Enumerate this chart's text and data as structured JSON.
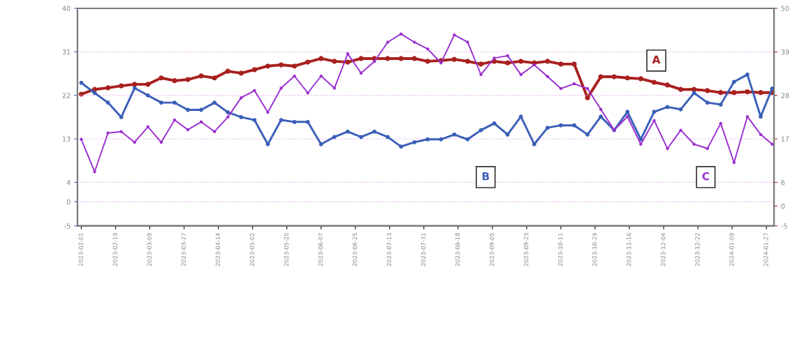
{
  "chart_data": {
    "type": "line",
    "x": [
      "2023-02-01",
      "2023-02-08",
      "2023-02-15",
      "2023-02-22",
      "2023-03-01",
      "2023-03-08",
      "2023-03-15",
      "2023-03-22",
      "2023-03-29",
      "2023-04-05",
      "2023-04-12",
      "2023-04-19",
      "2023-04-26",
      "2023-05-03",
      "2023-05-10",
      "2023-05-17",
      "2023-05-24",
      "2023-05-31",
      "2023-06-07",
      "2023-06-14",
      "2023-06-21",
      "2023-06-28",
      "2023-07-05",
      "2023-07-12",
      "2023-07-19",
      "2023-07-26",
      "2023-08-02",
      "2023-08-09",
      "2023-08-16",
      "2023-08-23",
      "2023-08-30",
      "2023-09-06",
      "2023-09-13",
      "2023-09-20",
      "2023-09-27",
      "2023-10-04",
      "2023-10-11",
      "2023-10-18",
      "2023-10-25",
      "2023-11-01",
      "2023-11-08",
      "2023-11-15",
      "2023-11-22",
      "2023-11-29",
      "2023-12-06",
      "2023-12-13",
      "2023-12-20",
      "2023-12-27",
      "2024-01-03",
      "2024-01-10",
      "2024-01-17",
      "2024-01-24",
      "2024-01-30"
    ],
    "series": [
      {
        "name": "A",
        "color": "#a8201e",
        "axis": "y2",
        "values": [
          28.3,
          29.5,
          29.9,
          30.4,
          30.8,
          30.8,
          32.4,
          31.7,
          32,
          32.9,
          32.4,
          34.1,
          33.6,
          34.5,
          35.4,
          35.7,
          35.4,
          36.4,
          37.3,
          36.6,
          36.4,
          37.3,
          37.3,
          37.3,
          37.3,
          37.3,
          36.6,
          36.8,
          37.1,
          36.6,
          35.9,
          36.6,
          36.2,
          36.6,
          36.2,
          36.6,
          35.9,
          35.9,
          27.4,
          32.7,
          32.7,
          32.4,
          32.2,
          31.3,
          30.6,
          29.5,
          29.5,
          29.2,
          28.7,
          28.7,
          28.9,
          28.7,
          28.7
        ]
      },
      {
        "name": "B",
        "color": "#3a5fb8",
        "values": [
          24.6,
          22.5,
          20.5,
          17.5,
          23.5,
          22,
          20.5,
          20.5,
          19,
          19,
          20.5,
          18.5,
          17.5,
          16.9,
          11.9,
          16.9,
          16.5,
          16.5,
          11.9,
          13.4,
          14.5,
          13.4,
          14.5,
          13.4,
          11.4,
          12.3,
          12.9,
          12.9,
          13.9,
          12.9,
          14.8,
          16.2,
          13.9,
          17.6,
          11.9,
          15.3,
          15.8,
          15.8,
          13.9,
          17.6,
          14.8,
          18.6,
          12.9,
          18.6,
          19.6,
          19.1,
          22.5,
          20.5,
          20.1,
          24.8,
          26.3,
          17.6,
          23.4
        ]
      },
      {
        "name": "C",
        "color": "#9b30cf",
        "values": [
          12.9,
          6.2,
          14.2,
          14.5,
          12.3,
          15.5,
          12.3,
          16.9,
          14.9,
          16.5,
          14.5,
          17.5,
          21.5,
          23,
          18.5,
          23.5,
          26,
          22.5,
          26,
          23.5,
          30.6,
          26.6,
          29,
          33,
          34.7,
          33,
          31.6,
          28.7,
          34.5,
          33,
          26.3,
          29.7,
          30.2,
          26.3,
          28.3,
          25.9,
          23.4,
          24.4,
          23.4,
          19.1,
          14.8,
          17.6,
          11.9,
          16.8,
          11,
          14.8,
          11.9,
          11,
          16.2,
          8.1,
          17.6,
          13.9,
          11.9
        ]
      }
    ],
    "xlim": [
      "2023-01-30",
      "2024-01-31"
    ],
    "xticks": [
      "2023-02-01",
      "2023-02-19",
      "2023-03-09",
      "2023-03-27",
      "2023-04-14",
      "2023-05-02",
      "2023-05-20",
      "2023-06-07",
      "2023-06-25",
      "2023-07-13",
      "2023-07-31",
      "2023-08-18",
      "2023-09-05",
      "2023-09-23",
      "2023-10-11",
      "2023-10-29",
      "2023-11-16",
      "2023-12-04",
      "2023-12-22",
      "2024-01-09",
      "2024-01-27"
    ],
    "ylim": [
      -5,
      40
    ],
    "yticks": [
      -5,
      0,
      4,
      13,
      22,
      31,
      40
    ],
    "y2lim": [
      -5,
      50
    ],
    "y2ticks": [
      -5,
      0,
      6,
      17,
      28,
      39,
      50
    ],
    "grid": "y",
    "marker": "circle",
    "line_style": "solid"
  }
}
